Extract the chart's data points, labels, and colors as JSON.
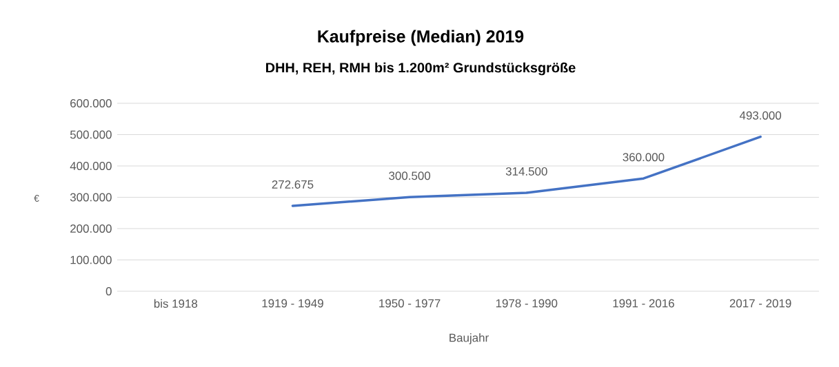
{
  "chart_data": {
    "type": "line",
    "title": "Kaufpreise (Median) 2019",
    "subtitle": "DHH, REH, RMH bis 1.200m² Grundstücksgröße",
    "xlabel": "Baujahr",
    "ylabel": "€",
    "categories": [
      "bis 1918",
      "1919 - 1949",
      "1950 - 1977",
      "1978 - 1990",
      "1991 - 2016",
      "2017 - 2019"
    ],
    "series": [
      {
        "color": "#4472c4",
        "values": [
          null,
          272675,
          300500,
          314500,
          360000,
          493000
        ],
        "value_labels": [
          null,
          "272.675",
          "300.500",
          "314.500",
          "360.000",
          "493.000"
        ]
      }
    ],
    "ylim": [
      0,
      600000
    ],
    "yticks": [
      0,
      {
        "value": 100000,
        "label": "100.000"
      },
      {
        "value": 200000,
        "label": "200.000"
      },
      {
        "value": 300000,
        "label": "300.000"
      },
      {
        "value": 400000,
        "label": "400.000"
      },
      {
        "value": 500000,
        "label": "500.000"
      },
      {
        "value": 600000,
        "label": "600.000"
      }
    ],
    "grid": "y"
  }
}
